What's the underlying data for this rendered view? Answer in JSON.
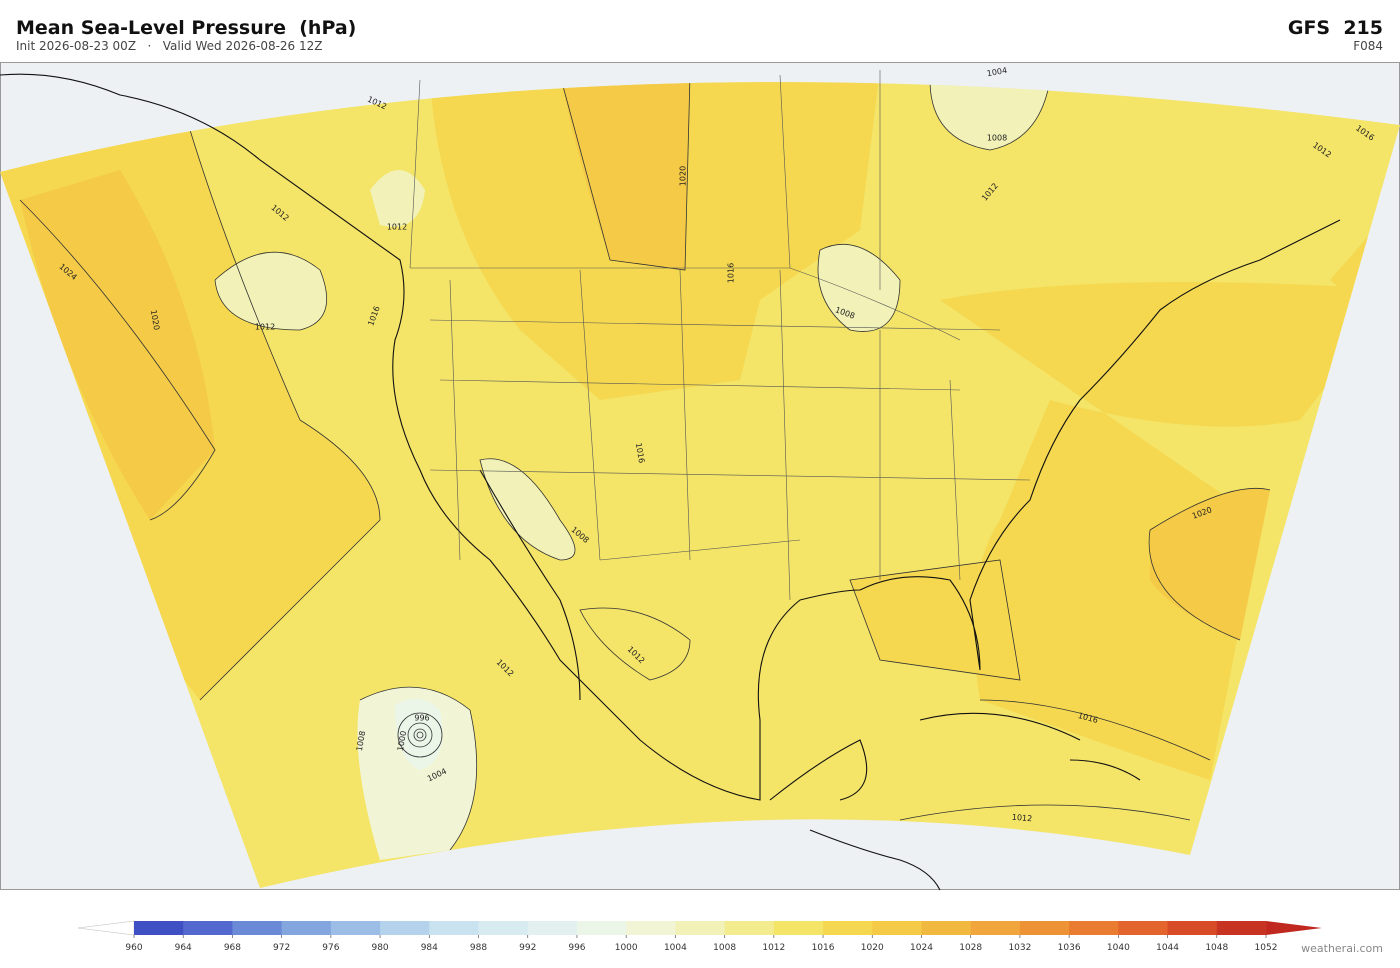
{
  "header": {
    "title": "Mean Sea-Level Pressure  (hPa)",
    "subtitle": "Init 2026-08-23 00Z   ·   Valid Wed 2026-08-26 12Z",
    "model": "GFS  215",
    "forecast_hour": "F084"
  },
  "map": {
    "contour_labels": [
      1012,
      1004,
      1008,
      1012,
      1012,
      1012,
      1024,
      1020,
      1016,
      1012,
      1020,
      1016,
      1008,
      1016,
      1008,
      1020,
      1016,
      1012,
      1012,
      1012,
      996,
      1008,
      1000,
      1004,
      1016,
      1012
    ]
  },
  "colorbar": {
    "ticks": [
      960,
      964,
      968,
      972,
      976,
      980,
      984,
      988,
      992,
      996,
      1000,
      1004,
      1008,
      1012,
      1016,
      1020,
      1024,
      1028,
      1032,
      1036,
      1040,
      1044,
      1048,
      1052
    ],
    "colors": [
      "#3f4fc4",
      "#5369cf",
      "#6a8ad8",
      "#84a6df",
      "#9cbde5",
      "#b4d2ec",
      "#c9e2f0",
      "#d8ebf0",
      "#e2f1ef",
      "#ebf5e8",
      "#f1f5d6",
      "#f2f2b8",
      "#f3ec8e",
      "#f4e468",
      "#f5d84f",
      "#f4ca47",
      "#f2b941",
      "#f0a63c",
      "#ee9236",
      "#e97c31",
      "#e3642c",
      "#d84b27",
      "#c83424"
    ],
    "under_color": "#ffffff",
    "over_color": "#c0281f"
  },
  "footer": {
    "credit": "weatherai.com"
  }
}
